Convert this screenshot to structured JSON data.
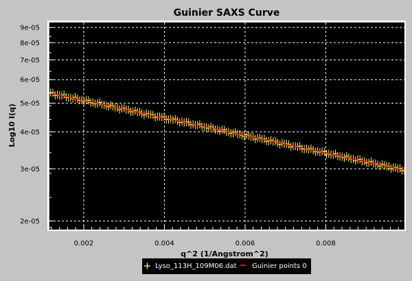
{
  "chart_data": {
    "type": "line",
    "title": "Guinier SAXS Curve",
    "xlabel": "q^2 (1/Angstrom^2)",
    "ylabel": "Log10 I(q)",
    "xlim": [
      0.00115,
      0.00995
    ],
    "ylim": [
      1.87e-05,
      9.35e-05
    ],
    "y_scale": "log",
    "grid": true,
    "legend_position": "bottom",
    "x_ticks": [
      0.002,
      0.004,
      0.006,
      0.008
    ],
    "x_tick_labels": [
      "0.002",
      "0.004",
      "0.006",
      "0.008"
    ],
    "y_ticks": [
      2e-05,
      3e-05,
      4e-05,
      5e-05,
      6e-05,
      7e-05,
      8e-05,
      9e-05
    ],
    "y_tick_labels": [
      "2e-05",
      "3e-05",
      "4e-05",
      "5e-05",
      "6e-05",
      "7e-05",
      "8e-05",
      "9e-05"
    ],
    "series": [
      {
        "name": "Lyso_113H_109M06.dat",
        "style": "markers",
        "marker": "+",
        "color": "#ffff33",
        "x_start": 0.00118,
        "x_end": 0.00995,
        "count": 160,
        "y_start": 5.4e-05,
        "y_end": 2.97e-05
      },
      {
        "name": "Guinier points 0",
        "style": "line",
        "color": "#ff0000",
        "x": [
          0.00118,
          0.00995
        ],
        "y": [
          5.4e-05,
          2.97e-05
        ]
      }
    ]
  },
  "colors": {
    "page_background": "#c4c4c4",
    "plot_background": "#000000",
    "grid": "#ffffff",
    "frame": "#ffffff"
  }
}
